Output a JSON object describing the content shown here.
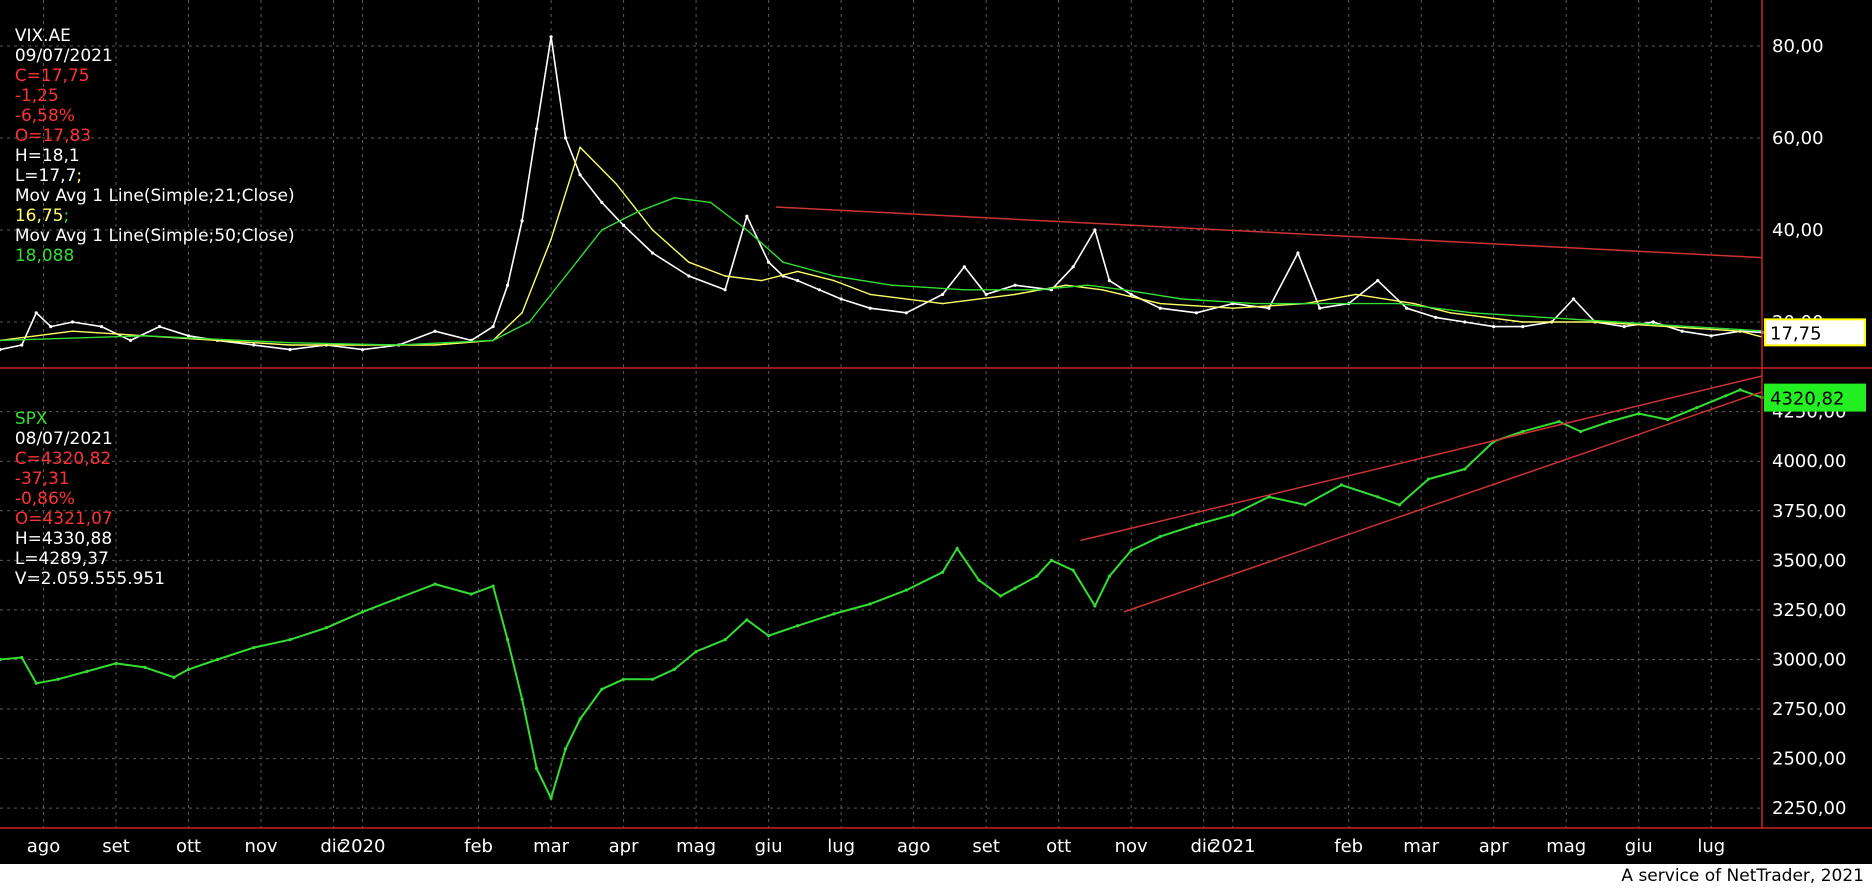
{
  "colors": {
    "background": "#000000",
    "grid": "#5a5a5a",
    "axis": "#cc2222",
    "text": "#ffffff",
    "red_value": "#ff3333",
    "yellow": "#ffff66",
    "green": "#33dd33",
    "trendline": "#cc3333"
  },
  "vix_header": {
    "symbol": "VIX.AE",
    "date": "09/07/2021",
    "close": "C=17,75",
    "change": "-1,25",
    "change_pct": "-6,58%",
    "open": "O=17,83",
    "high": "H=18,1",
    "low": "L=17,7",
    "sep1": ";",
    "ma21_label": "Mov Avg 1 Line(Simple;21;Close)",
    "ma21_value": "16,75",
    "sep2": ";",
    "ma50_label": "Mov Avg 1 Line(Simple;50;Close)",
    "ma50_value": "18,088"
  },
  "spx_header": {
    "symbol": "SPX",
    "date": "08/07/2021",
    "close": "C=4320,82",
    "change": "-37,31",
    "change_pct": "-0,86%",
    "open": "O=4321,07",
    "high": "H=4330,88",
    "low": "L=4289,37",
    "volume": "V=2.059.555.951"
  },
  "footer": "A service of NetTrader, 2021",
  "chart_data": [
    {
      "type": "line",
      "name": "VIX.AE",
      "y_ticks": [
        "20,00",
        "40,00",
        "60,00",
        "80,00"
      ],
      "y_tick_values": [
        20,
        40,
        60,
        80
      ],
      "ylim": [
        10,
        90
      ],
      "last_value_label": "17,75",
      "x_labels": [
        "ago",
        "set",
        "ott",
        "nov",
        "dic",
        "2020",
        "feb",
        "mar",
        "apr",
        "mag",
        "giu",
        "lug",
        "ago",
        "set",
        "ott",
        "nov",
        "dic",
        "2021",
        "feb",
        "mar",
        "apr",
        "mag",
        "giu",
        "lug"
      ],
      "x_label_positions": [
        0.6,
        1.6,
        2.6,
        3.6,
        4.6,
        5.0,
        6.6,
        7.6,
        8.6,
        9.6,
        10.6,
        11.6,
        12.6,
        13.6,
        14.6,
        15.6,
        16.6,
        17.0,
        18.6,
        19.6,
        20.6,
        21.6,
        22.6,
        23.6
      ],
      "xlim": [
        0,
        24.3
      ],
      "series": [
        {
          "name": "VIX.AE",
          "x": [
            0.0,
            0.3,
            0.5,
            0.7,
            1.0,
            1.4,
            1.8,
            2.2,
            2.6,
            3.0,
            3.5,
            4.0,
            4.5,
            5.0,
            5.5,
            6.0,
            6.5,
            6.8,
            7.0,
            7.2,
            7.4,
            7.6,
            7.8,
            8.0,
            8.3,
            8.6,
            9.0,
            9.5,
            10.0,
            10.3,
            10.6,
            10.8,
            11.0,
            11.3,
            11.6,
            12.0,
            12.5,
            13.0,
            13.3,
            13.6,
            14.0,
            14.5,
            14.8,
            15.1,
            15.3,
            15.6,
            16.0,
            16.5,
            17.0,
            17.5,
            17.9,
            18.2,
            18.6,
            19.0,
            19.4,
            19.8,
            20.2,
            20.6,
            21.0,
            21.4,
            21.7,
            22.0,
            22.4,
            22.8,
            23.2,
            23.6,
            24.0,
            24.3
          ],
          "y": [
            14,
            15,
            22,
            19,
            20,
            19,
            16,
            19,
            17,
            16,
            15,
            14,
            15,
            14,
            15,
            18,
            16,
            19,
            28,
            42,
            62,
            82,
            60,
            52,
            46,
            41,
            35,
            30,
            27,
            43,
            33,
            30,
            29,
            27,
            25,
            23,
            22,
            26,
            32,
            26,
            28,
            27,
            32,
            40,
            29,
            26,
            23,
            22,
            24,
            23,
            35,
            23,
            24,
            29,
            23,
            21,
            20,
            19,
            19,
            20,
            25,
            20,
            19,
            20,
            18,
            17,
            18,
            17.75
          ]
        },
        {
          "name": "Mov Avg 1 Line(Simple;21;Close)",
          "x": [
            0.0,
            1.0,
            2.0,
            3.0,
            4.0,
            5.0,
            6.0,
            6.8,
            7.2,
            7.6,
            8.0,
            8.5,
            9.0,
            9.5,
            10.0,
            10.5,
            11.0,
            11.5,
            12.0,
            13.0,
            14.0,
            14.7,
            15.2,
            16.0,
            17.0,
            18.0,
            18.7,
            19.5,
            20.0,
            21.0,
            22.0,
            23.0,
            24.0,
            24.3
          ],
          "y": [
            16,
            18,
            17,
            16,
            15,
            15,
            15,
            16,
            22,
            38,
            58,
            50,
            40,
            33,
            30,
            29,
            31,
            29,
            26,
            24,
            26,
            28,
            27,
            24,
            23,
            24,
            26,
            24,
            22,
            20,
            20,
            19,
            18,
            16.75
          ]
        },
        {
          "name": "Mov Avg 1 Line(Simple;50;Close)",
          "x": [
            0.0,
            2.0,
            4.0,
            5.5,
            6.8,
            7.3,
            7.8,
            8.3,
            8.8,
            9.3,
            9.8,
            10.3,
            10.8,
            11.5,
            12.3,
            13.3,
            14.3,
            15.0,
            15.5,
            16.3,
            17.3,
            18.3,
            19.3,
            20.3,
            21.3,
            22.3,
            23.3,
            24.3
          ],
          "y": [
            16,
            17,
            15.5,
            15,
            16,
            20,
            30,
            40,
            44,
            47,
            46,
            40,
            33,
            30,
            28,
            27,
            27,
            28,
            27,
            25,
            24,
            24,
            24,
            22,
            21,
            20,
            19,
            18.088
          ]
        }
      ],
      "trendline": {
        "x": [
          10.7,
          24.3
        ],
        "y": [
          45,
          34
        ]
      },
      "grid": true
    },
    {
      "type": "line",
      "name": "SPX",
      "y_ticks": [
        "2250,00",
        "2500,00",
        "2750,00",
        "3000,00",
        "3250,00",
        "3500,00",
        "3750,00",
        "4000,00",
        "4250,00"
      ],
      "y_tick_values": [
        2250,
        2500,
        2750,
        3000,
        3250,
        3500,
        3750,
        4000,
        4250
      ],
      "ylim": [
        2150,
        4450
      ],
      "last_value_label": "4320,82",
      "xlim": [
        0,
        24.3
      ],
      "series": [
        {
          "name": "SPX",
          "x": [
            0.0,
            0.3,
            0.5,
            0.8,
            1.2,
            1.6,
            2.0,
            2.4,
            2.6,
            3.0,
            3.5,
            4.0,
            4.5,
            5.0,
            5.5,
            6.0,
            6.5,
            6.8,
            7.0,
            7.2,
            7.4,
            7.6,
            7.8,
            8.0,
            8.3,
            8.6,
            9.0,
            9.3,
            9.6,
            10.0,
            10.3,
            10.6,
            11.0,
            11.5,
            12.0,
            12.5,
            13.0,
            13.2,
            13.5,
            13.8,
            14.0,
            14.3,
            14.5,
            14.8,
            15.1,
            15.3,
            15.6,
            16.0,
            16.5,
            17.0,
            17.5,
            18.0,
            18.5,
            19.0,
            19.3,
            19.7,
            20.2,
            20.6,
            21.0,
            21.5,
            21.8,
            22.2,
            22.6,
            23.0,
            23.4,
            23.8,
            24.0,
            24.3
          ],
          "y": [
            3000,
            3010,
            2880,
            2900,
            2940,
            2980,
            2960,
            2910,
            2950,
            3000,
            3060,
            3100,
            3160,
            3240,
            3310,
            3380,
            3330,
            3370,
            3100,
            2800,
            2450,
            2300,
            2550,
            2700,
            2850,
            2900,
            2900,
            2950,
            3040,
            3100,
            3200,
            3120,
            3170,
            3230,
            3280,
            3350,
            3440,
            3560,
            3400,
            3320,
            3360,
            3420,
            3500,
            3450,
            3270,
            3420,
            3550,
            3620,
            3680,
            3730,
            3820,
            3780,
            3880,
            3820,
            3780,
            3910,
            3960,
            4100,
            4150,
            4200,
            4150,
            4200,
            4240,
            4210,
            4270,
            4330,
            4360,
            4320.82
          ]
        }
      ],
      "channel_upper": {
        "x": [
          14.9,
          24.3
        ],
        "y": [
          3600,
          4430
        ]
      },
      "channel_lower": {
        "x": [
          15.5,
          24.3
        ],
        "y": [
          3240,
          4350
        ]
      },
      "grid": true
    }
  ]
}
